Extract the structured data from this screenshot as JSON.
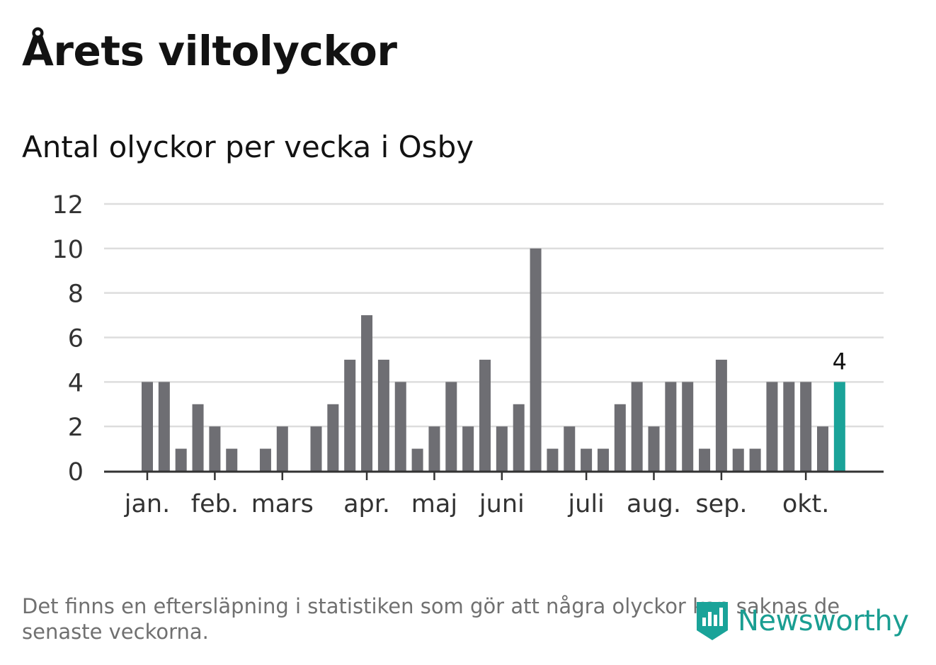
{
  "title": "Årets viltolyckor",
  "subtitle": "Antal olyckor per vecka i Osby",
  "footnote": "Det finns en eftersläpning i statistiken som gör att några olyckor kan saknas de senaste veckorna.",
  "logo": {
    "text": "Newsworthy",
    "icon": "newsworthy-logo-icon"
  },
  "colors": {
    "bar": "#6e6e73",
    "highlight": "#1aa399",
    "grid": "#dddddd",
    "axis": "#333333",
    "text": "#333333"
  },
  "chart_data": {
    "type": "bar",
    "title": "Antal olyckor per vecka i Osby",
    "xlabel": "",
    "ylabel": "",
    "ylim": [
      0,
      12
    ],
    "yticks": [
      "0",
      "2",
      "4",
      "6",
      "8",
      "10",
      "12"
    ],
    "values": [
      4,
      4,
      1,
      3,
      2,
      1,
      0,
      1,
      2,
      0,
      2,
      3,
      5,
      7,
      5,
      4,
      1,
      2,
      4,
      2,
      5,
      2,
      3,
      10,
      1,
      2,
      1,
      1,
      3,
      4,
      2,
      4,
      4,
      1,
      5,
      1,
      1,
      4,
      4,
      4,
      2,
      4
    ],
    "highlight_index": 41,
    "highlight_label": "4",
    "month_labels": [
      {
        "label": "jan.",
        "week": 1
      },
      {
        "label": "feb.",
        "week": 5
      },
      {
        "label": "mars",
        "week": 9
      },
      {
        "label": "apr.",
        "week": 14
      },
      {
        "label": "maj",
        "week": 18
      },
      {
        "label": "juni",
        "week": 22
      },
      {
        "label": "juli",
        "week": 27
      },
      {
        "label": "aug.",
        "week": 31
      },
      {
        "label": "sep.",
        "week": 35
      },
      {
        "label": "okt.",
        "week": 40
      }
    ]
  }
}
